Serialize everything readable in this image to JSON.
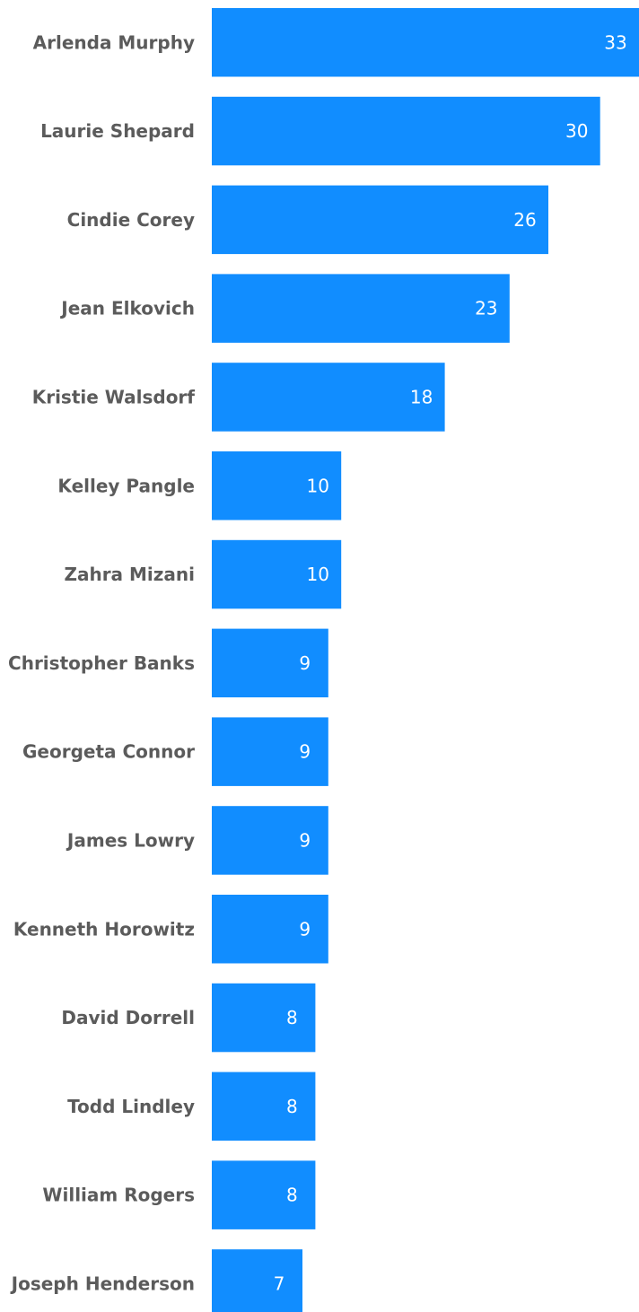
{
  "chart_data": {
    "type": "bar",
    "orientation": "horizontal",
    "categories": [
      "Arlenda Murphy",
      "Laurie Shepard",
      "Cindie Corey",
      "Jean Elkovich",
      "Kristie Walsdorf",
      "Kelley Pangle",
      "Zahra Mizani",
      "Christopher Banks",
      "Georgeta Connor",
      "James Lowry",
      "Kenneth Horowitz",
      "David Dorrell",
      "Todd Lindley",
      "William Rogers",
      "Joseph Henderson"
    ],
    "values": [
      33,
      30,
      26,
      23,
      18,
      10,
      10,
      9,
      9,
      9,
      9,
      8,
      8,
      8,
      7
    ],
    "data_labels": [
      "33",
      "30",
      "26",
      "23",
      "18",
      "10",
      "10",
      "9",
      "9",
      "9",
      "9",
      "8",
      "8",
      "8",
      "7"
    ],
    "xlim": [
      0,
      33
    ],
    "bar_color": "#118dff",
    "label_color": "#5b5b5b",
    "value_label_color": "#ffffff",
    "grid": false,
    "legend": "none"
  }
}
